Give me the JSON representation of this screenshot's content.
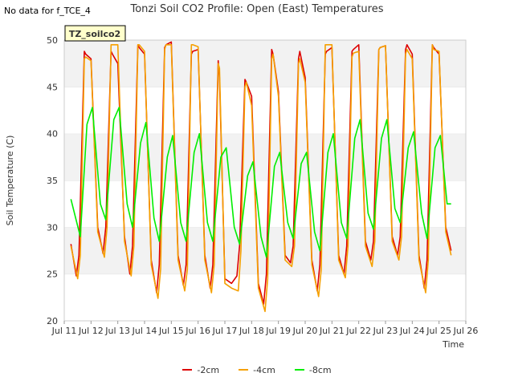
{
  "note": "No data for f_TCE_4",
  "chart_data": {
    "type": "line",
    "title": "Tonzi Soil CO2 Profile: Open (East) Temperatures",
    "xlabel": "Time",
    "ylabel": "Soil Temperature (C)",
    "xlim": [
      11,
      26
    ],
    "ylim": [
      20,
      50
    ],
    "x_ticks": [
      11,
      12,
      13,
      14,
      15,
      16,
      17,
      18,
      19,
      20,
      21,
      22,
      23,
      24,
      25,
      26
    ],
    "x_tick_labels": [
      "Jul 11",
      "Jul 12",
      "Jul 13",
      "Jul 14",
      "Jul 15",
      "Jul 16",
      "Jul 17",
      "Jul 18",
      "Jul 19",
      "Jul 20",
      "Jul 21",
      "Jul 22",
      "Jul 23",
      "Jul 24",
      "Jul 25",
      "Jul 26"
    ],
    "y_ticks": [
      20,
      25,
      30,
      35,
      40,
      45,
      50
    ],
    "grid": "horizontal bands",
    "badge": "TZ_soilco2",
    "legend_position": "bottom",
    "series": [
      {
        "name": "-2cm",
        "color": "#dd0000",
        "x": [
          11.25,
          11.45,
          11.55,
          11.75,
          11.8,
          12.0,
          12.25,
          12.45,
          12.55,
          12.75,
          12.8,
          13.0,
          13.25,
          13.45,
          13.55,
          13.75,
          13.8,
          14.0,
          14.25,
          14.45,
          14.55,
          14.75,
          14.8,
          15.0,
          15.25,
          15.45,
          15.55,
          15.75,
          15.8,
          16.0,
          16.25,
          16.45,
          16.55,
          16.75,
          16.8,
          17.0,
          17.25,
          17.45,
          17.55,
          17.75,
          17.8,
          18.0,
          18.25,
          18.45,
          18.55,
          18.75,
          18.8,
          19.0,
          19.25,
          19.45,
          19.55,
          19.75,
          19.8,
          20.0,
          20.25,
          20.45,
          20.55,
          20.75,
          20.8,
          21.0,
          21.25,
          21.45,
          21.55,
          21.75,
          21.8,
          22.0,
          22.25,
          22.45,
          22.55,
          22.75,
          22.8,
          23.0,
          23.25,
          23.45,
          23.55,
          23.75,
          23.8,
          24.0,
          24.25,
          24.45,
          24.55,
          24.75,
          24.8,
          25.0,
          25.25,
          25.45
        ],
        "y": [
          28.2,
          24.8,
          27.0,
          48.8,
          48.5,
          48.0,
          30.0,
          27.2,
          30.0,
          48.8,
          48.5,
          47.5,
          29.0,
          25.0,
          28.0,
          49.5,
          49.2,
          48.5,
          26.5,
          23.0,
          26.0,
          49.2,
          49.5,
          49.8,
          27.0,
          23.8,
          26.0,
          48.5,
          48.8,
          49.0,
          27.0,
          23.5,
          26.0,
          47.8,
          46.0,
          24.5,
          24.0,
          24.8,
          28.0,
          45.8,
          45.5,
          44.0,
          24.0,
          21.8,
          25.0,
          49.0,
          48.5,
          44.5,
          27.0,
          26.2,
          28.0,
          48.0,
          48.8,
          46.0,
          26.5,
          23.2,
          26.0,
          48.5,
          48.8,
          49.2,
          27.0,
          25.0,
          28.0,
          48.8,
          49.0,
          49.5,
          28.5,
          26.5,
          28.5,
          49.0,
          49.2,
          49.4,
          29.0,
          27.0,
          29.0,
          49.0,
          49.5,
          48.5,
          27.0,
          23.5,
          26.5,
          49.5,
          49.2,
          48.5,
          30.0,
          27.5
        ]
      },
      {
        "name": "-4cm",
        "color": "#f5a000",
        "x": [
          11.25,
          11.5,
          11.6,
          11.75,
          11.8,
          12.0,
          12.25,
          12.5,
          12.6,
          12.75,
          12.8,
          13.0,
          13.25,
          13.5,
          13.6,
          13.75,
          13.8,
          14.0,
          14.25,
          14.5,
          14.6,
          14.75,
          14.8,
          15.0,
          15.25,
          15.5,
          15.6,
          15.75,
          15.8,
          16.0,
          16.25,
          16.5,
          16.6,
          16.75,
          16.8,
          17.0,
          17.25,
          17.5,
          17.6,
          17.75,
          17.8,
          18.0,
          18.25,
          18.5,
          18.6,
          18.75,
          18.8,
          19.0,
          19.25,
          19.5,
          19.6,
          19.75,
          19.8,
          20.0,
          20.25,
          20.5,
          20.6,
          20.75,
          20.8,
          21.0,
          21.25,
          21.5,
          21.6,
          21.75,
          21.8,
          22.0,
          22.25,
          22.5,
          22.6,
          22.75,
          22.8,
          23.0,
          23.25,
          23.5,
          23.6,
          23.75,
          23.8,
          24.0,
          24.25,
          24.5,
          24.6,
          24.75,
          24.8,
          25.0,
          25.25,
          25.45
        ],
        "y": [
          28.0,
          24.5,
          27.0,
          48.0,
          48.2,
          47.8,
          29.5,
          26.8,
          30.0,
          49.5,
          49.5,
          49.5,
          28.5,
          24.8,
          28.0,
          49.5,
          49.5,
          48.8,
          26.0,
          22.4,
          25.5,
          49.0,
          49.5,
          49.5,
          26.5,
          23.2,
          25.5,
          49.5,
          49.5,
          49.3,
          26.5,
          23.0,
          26.0,
          47.5,
          47.0,
          24.0,
          23.5,
          23.2,
          27.5,
          45.0,
          45.5,
          43.0,
          23.5,
          21.0,
          24.5,
          48.0,
          48.5,
          44.0,
          26.5,
          25.8,
          28.0,
          47.5,
          48.0,
          45.5,
          26.0,
          22.6,
          25.5,
          49.5,
          49.5,
          49.5,
          26.5,
          24.6,
          28.0,
          48.2,
          48.6,
          48.8,
          28.0,
          25.8,
          28.5,
          49.0,
          49.2,
          49.4,
          28.5,
          26.5,
          29.0,
          48.5,
          49.0,
          48.0,
          26.5,
          23.0,
          26.5,
          49.5,
          49.0,
          48.8,
          29.5,
          27.0
        ]
      },
      {
        "name": "-8cm",
        "color": "#00ee00",
        "x": [
          11.25,
          11.6,
          11.85,
          12.05,
          12.35,
          12.55,
          12.85,
          13.05,
          13.35,
          13.55,
          13.85,
          14.05,
          14.35,
          14.55,
          14.85,
          15.05,
          15.35,
          15.55,
          15.85,
          16.05,
          16.35,
          16.55,
          16.85,
          17.05,
          17.35,
          17.55,
          17.85,
          18.05,
          18.35,
          18.55,
          18.85,
          19.05,
          19.35,
          19.55,
          19.85,
          20.05,
          20.35,
          20.55,
          20.85,
          21.05,
          21.35,
          21.55,
          21.85,
          22.05,
          22.35,
          22.55,
          22.85,
          23.05,
          23.35,
          23.55,
          23.85,
          24.05,
          24.35,
          24.55,
          24.85,
          25.05,
          25.3,
          25.45
        ],
        "y": [
          33.0,
          29.0,
          41.0,
          42.8,
          32.5,
          30.8,
          41.5,
          42.8,
          32.5,
          30.0,
          39.0,
          41.2,
          31.0,
          28.5,
          37.5,
          39.8,
          30.5,
          28.5,
          38.0,
          40.0,
          30.5,
          28.5,
          37.5,
          38.5,
          30.0,
          28.2,
          35.5,
          37.0,
          29.0,
          26.8,
          36.5,
          38.0,
          30.5,
          28.8,
          36.8,
          38.0,
          29.5,
          27.5,
          38.0,
          40.0,
          30.5,
          28.8,
          39.5,
          41.5,
          31.5,
          29.8,
          39.5,
          41.5,
          32.0,
          30.5,
          38.5,
          40.2,
          31.5,
          28.8,
          38.5,
          39.8,
          32.5,
          32.5
        ]
      }
    ]
  }
}
